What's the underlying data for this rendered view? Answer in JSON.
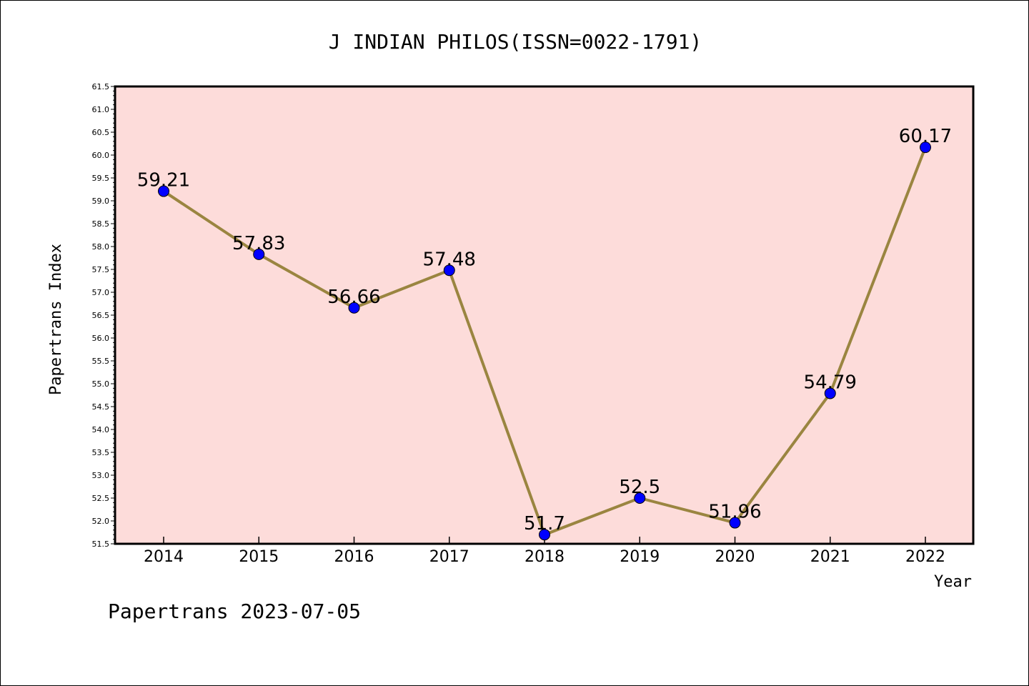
{
  "chart_data": {
    "type": "line",
    "title": "J INDIAN PHILOS(ISSN=0022-1791)",
    "xlabel": "Year",
    "ylabel": "Papertrans Index",
    "x": [
      "2014",
      "2015",
      "2016",
      "2017",
      "2018",
      "2019",
      "2020",
      "2021",
      "2022"
    ],
    "series": [
      {
        "values": [
          59.21,
          57.83,
          56.66,
          57.48,
          51.7,
          52.5,
          51.96,
          54.79,
          60.17
        ]
      }
    ],
    "data_labels": [
      "59.21",
      "57.83",
      "56.66",
      "57.48",
      "51.7",
      "52.5",
      "51.96",
      "54.79",
      "60.17"
    ],
    "ylim": [
      51.5,
      61.5
    ],
    "yticks": [
      "51.5",
      "52.0",
      "52.5",
      "53.0",
      "53.5",
      "54.0",
      "54.5",
      "55.0",
      "55.5",
      "56.0",
      "56.5",
      "57.0",
      "57.5",
      "58.0",
      "58.5",
      "59.0",
      "59.5",
      "60.0",
      "60.5",
      "61.0",
      "61.5"
    ],
    "grid": false,
    "colors": {
      "plot_background": "#fddcda",
      "line": "#9a8540",
      "marker": "#0000ff"
    },
    "footer": "Papertrans 2023-07-05"
  }
}
